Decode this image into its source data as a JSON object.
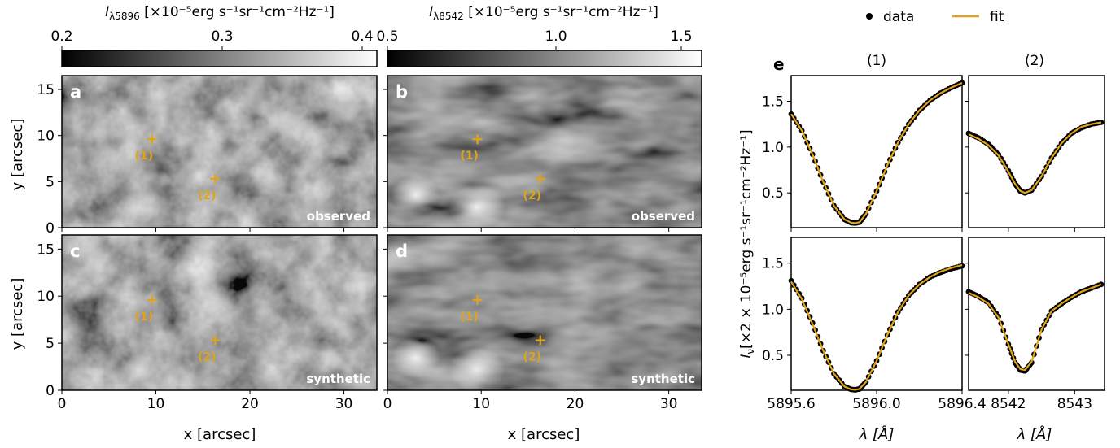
{
  "colors": {
    "accent": "#E0A41B",
    "data_points": "#000000",
    "background": "#ffffff"
  },
  "colorbars": [
    {
      "label_main": "I",
      "label_sub": "λ5896",
      "label_unit": " [×10⁻⁵erg s⁻¹sr⁻¹cm⁻²Hz⁻¹]",
      "ticks": [
        "0.2",
        "0.3",
        "0.4"
      ],
      "range": [
        0.2,
        0.41
      ]
    },
    {
      "label_main": "I",
      "label_sub": "λ8542",
      "label_unit": " [×10⁻⁵erg s⁻¹sr⁻¹cm⁻²Hz⁻¹]",
      "ticks": [
        "0.5",
        "1.0",
        "1.5"
      ],
      "range": [
        0.5,
        1.58
      ]
    }
  ],
  "maps": {
    "panels": [
      {
        "letter": "a",
        "label": "observed",
        "line": "Na I 5896"
      },
      {
        "letter": "b",
        "label": "observed",
        "line": "Ca II 8542"
      },
      {
        "letter": "c",
        "label": "synthetic",
        "line": "Na I 5896"
      },
      {
        "letter": "d",
        "label": "synthetic",
        "line": "Ca II 8542"
      }
    ],
    "xlabel": "x [arcsec]",
    "ylabel": "y [arcsec]",
    "xticks": [
      "0",
      "10",
      "20",
      "30"
    ],
    "yticks": [
      "0",
      "5",
      "10",
      "15"
    ],
    "xlim": [
      0,
      33.5
    ],
    "ylim": [
      0,
      16.5
    ],
    "markers": [
      {
        "label": "(1)",
        "x": 9.6,
        "y": 9.6
      },
      {
        "label": "(2)",
        "x": 16.3,
        "y": 5.3
      }
    ]
  },
  "profiles": {
    "panel_letter": "e",
    "col_titles": [
      "(1)",
      "(2)"
    ],
    "legend": {
      "data": "data",
      "fit": "fit"
    },
    "xlabel": "λ [Å]",
    "ylabel": "I_ν [×2 × 10⁻⁵erg s⁻¹sr⁻¹cm⁻²Hz⁻¹]",
    "yticks": [
      "0.5",
      "1.0",
      "1.5"
    ],
    "ylim": [
      0.12,
      1.78
    ],
    "col1_xticks": [
      "5895.6",
      "5896.0",
      "5896.4"
    ],
    "col2_xticks": [
      "8542",
      "8543"
    ]
  },
  "chart_data": {
    "type": "line",
    "title": "",
    "legend_placement": "top-right",
    "grid": false,
    "series": [
      {
        "name": "data",
        "panel": "row1-col1",
        "marker": "dot",
        "x": [
          5895.6,
          5895.65,
          5895.7,
          5895.75,
          5895.8,
          5895.85,
          5895.88,
          5895.9,
          5895.92,
          5895.95,
          5896.0,
          5896.05,
          5896.1,
          5896.15,
          5896.2,
          5896.25,
          5896.3,
          5896.35,
          5896.4
        ],
        "y": [
          1.36,
          1.18,
          0.92,
          0.62,
          0.36,
          0.21,
          0.175,
          0.17,
          0.18,
          0.27,
          0.52,
          0.8,
          1.05,
          1.25,
          1.4,
          1.51,
          1.59,
          1.65,
          1.7
        ]
      },
      {
        "name": "fit",
        "panel": "row1-col1",
        "marker": "line",
        "x": [
          5895.6,
          5895.65,
          5895.7,
          5895.75,
          5895.8,
          5895.85,
          5895.88,
          5895.9,
          5895.92,
          5895.95,
          5896.0,
          5896.05,
          5896.1,
          5896.15,
          5896.2,
          5896.25,
          5896.3,
          5896.35,
          5896.4
        ],
        "y": [
          1.36,
          1.18,
          0.92,
          0.62,
          0.36,
          0.21,
          0.175,
          0.17,
          0.18,
          0.27,
          0.52,
          0.8,
          1.05,
          1.25,
          1.4,
          1.51,
          1.59,
          1.65,
          1.7
        ]
      },
      {
        "name": "data",
        "panel": "row1-col2",
        "marker": "dot",
        "x": [
          8541.4,
          8541.55,
          8541.7,
          8541.85,
          8542.0,
          8542.1,
          8542.18,
          8542.25,
          8542.35,
          8542.5,
          8542.65,
          8542.8,
          8542.95,
          8543.1,
          8543.25,
          8543.4
        ],
        "y": [
          1.15,
          1.1,
          1.03,
          0.92,
          0.74,
          0.6,
          0.52,
          0.5,
          0.53,
          0.68,
          0.88,
          1.04,
          1.15,
          1.21,
          1.25,
          1.27
        ]
      },
      {
        "name": "fit",
        "panel": "row1-col2",
        "marker": "line",
        "x": [
          8541.4,
          8541.55,
          8541.7,
          8541.85,
          8542.0,
          8542.1,
          8542.18,
          8542.25,
          8542.35,
          8542.5,
          8542.65,
          8542.8,
          8542.95,
          8543.1,
          8543.25,
          8543.4
        ],
        "y": [
          1.14,
          1.09,
          1.02,
          0.91,
          0.73,
          0.6,
          0.52,
          0.5,
          0.53,
          0.68,
          0.88,
          1.04,
          1.15,
          1.22,
          1.25,
          1.27
        ]
      },
      {
        "name": "data",
        "panel": "row2-col1",
        "marker": "dot",
        "x": [
          5895.6,
          5895.65,
          5895.7,
          5895.75,
          5895.8,
          5895.85,
          5895.88,
          5895.9,
          5895.92,
          5895.95,
          5896.0,
          5896.05,
          5896.1,
          5896.15,
          5896.2,
          5896.25,
          5896.3,
          5896.35,
          5896.4
        ],
        "y": [
          1.31,
          1.12,
          0.85,
          0.55,
          0.3,
          0.16,
          0.13,
          0.125,
          0.135,
          0.21,
          0.44,
          0.72,
          0.97,
          1.15,
          1.27,
          1.35,
          1.4,
          1.44,
          1.47
        ]
      },
      {
        "name": "fit",
        "panel": "row2-col1",
        "marker": "line",
        "x": [
          5895.6,
          5895.65,
          5895.7,
          5895.75,
          5895.8,
          5895.85,
          5895.88,
          5895.9,
          5895.92,
          5895.95,
          5896.0,
          5896.05,
          5896.1,
          5896.15,
          5896.2,
          5896.25,
          5896.3,
          5896.35,
          5896.4
        ],
        "y": [
          1.3,
          1.11,
          0.84,
          0.55,
          0.3,
          0.16,
          0.13,
          0.125,
          0.135,
          0.21,
          0.44,
          0.72,
          0.97,
          1.15,
          1.27,
          1.35,
          1.41,
          1.45,
          1.48
        ]
      },
      {
        "name": "data",
        "panel": "row2-col2",
        "marker": "dot",
        "x": [
          8541.4,
          8541.55,
          8541.7,
          8541.85,
          8542.0,
          8542.1,
          8542.18,
          8542.25,
          8542.35,
          8542.5,
          8542.65,
          8542.8,
          8542.95,
          8543.1,
          8543.25,
          8543.4
        ],
        "y": [
          1.19,
          1.14,
          1.07,
          0.92,
          0.62,
          0.42,
          0.34,
          0.33,
          0.42,
          0.78,
          0.98,
          1.06,
          1.13,
          1.19,
          1.23,
          1.27
        ]
      },
      {
        "name": "fit",
        "panel": "row2-col2",
        "marker": "line",
        "x": [
          8541.4,
          8541.55,
          8541.7,
          8541.85,
          8542.0,
          8542.1,
          8542.18,
          8542.25,
          8542.35,
          8542.5,
          8542.65,
          8542.8,
          8542.95,
          8543.1,
          8543.25,
          8543.4
        ],
        "y": [
          1.18,
          1.13,
          1.06,
          0.91,
          0.62,
          0.43,
          0.35,
          0.34,
          0.43,
          0.78,
          0.98,
          1.06,
          1.13,
          1.19,
          1.23,
          1.27
        ]
      }
    ]
  }
}
